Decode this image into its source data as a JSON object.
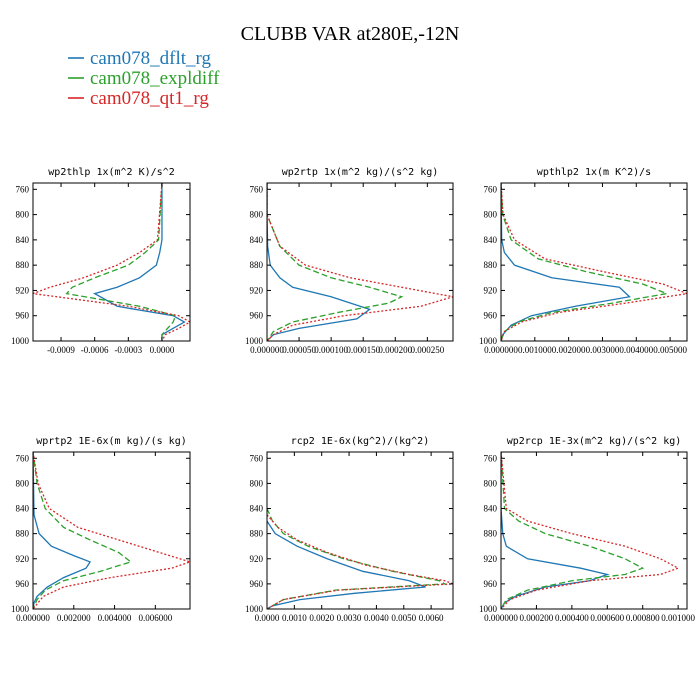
{
  "title": "CLUBB VAR at280E,-12N",
  "legend": [
    {
      "label": "cam078_dflt_rg",
      "color": "#1f77b4",
      "dash": "solid"
    },
    {
      "label": "cam078_expldiff",
      "color": "#2ca02c",
      "dash": "dashed"
    },
    {
      "label": "cam078_qt1_rg",
      "color": "#d62728",
      "dash": "dotted"
    }
  ],
  "chart_data": [
    {
      "type": "line",
      "title": "wp2thlp  1x(m^2 K)/s^2",
      "xlim": [
        -0.00115,
        0.00025
      ],
      "ylim": [
        1000,
        750
      ],
      "xticks": [
        "-0.0009",
        "-0.0006",
        "-0.0003",
        "0.0000"
      ],
      "xtick_values": [
        -0.0009,
        -0.0006,
        -0.0003,
        0.0
      ],
      "yticks": [
        760,
        800,
        840,
        880,
        920,
        960,
        1000
      ],
      "series": [
        {
          "name": "cam078_dflt_rg",
          "y": [
            750,
            840,
            860,
            880,
            900,
            915,
            925,
            945,
            960,
            970,
            980,
            990,
            1000
          ],
          "values": [
            0.0,
            0.0,
            -2e-05,
            -5e-05,
            -0.0002,
            -0.0004,
            -0.0006,
            -0.0004,
            0.0001,
            0.0002,
            0.0001,
            0.0,
            0.0
          ]
        },
        {
          "name": "cam078_expldiff",
          "y": [
            750,
            840,
            860,
            880,
            900,
            915,
            925,
            945,
            960,
            970,
            980,
            990,
            1000
          ],
          "values": [
            0.0,
            -3e-05,
            -0.00015,
            -0.0003,
            -0.0006,
            -0.0008,
            -0.00085,
            -0.0002,
            0.00012,
            0.0001,
            5e-05,
            0.0,
            0.0
          ]
        },
        {
          "name": "cam078_qt1_rg",
          "y": [
            750,
            840,
            860,
            880,
            900,
            915,
            925,
            945,
            960,
            970,
            980,
            990,
            1000
          ],
          "values": [
            0.0,
            -4e-05,
            -0.0002,
            -0.0004,
            -0.0007,
            -0.001,
            -0.00115,
            -0.0003,
            0.00015,
            0.00025,
            0.00015,
            3e-05,
            0.0
          ]
        }
      ]
    },
    {
      "type": "line",
      "title": "wp2rtp  1x(m^2 kg)/(s^2 kg)",
      "xlim": [
        0.0,
        0.00029
      ],
      "ylim": [
        1000,
        750
      ],
      "xticks": [
        "0.000000",
        "0.000050",
        "0.000100",
        "0.000150",
        "0.000200",
        "0.000250"
      ],
      "xtick_values": [
        0.0,
        5e-05,
        0.0001,
        0.00015,
        0.0002,
        0.00025
      ],
      "yticks": [
        760,
        800,
        840,
        880,
        920,
        960,
        1000
      ],
      "series": [
        {
          "name": "cam078_dflt_rg",
          "y": [
            750,
            800,
            850,
            880,
            900,
            915,
            930,
            950,
            965,
            980,
            990,
            1000
          ],
          "values": [
            0.0,
            0.0,
            1e-06,
            5e-06,
            2e-05,
            4e-05,
            0.0001,
            0.00016,
            0.00014,
            5e-05,
            1e-05,
            0.0
          ]
        },
        {
          "name": "cam078_expldiff",
          "y": [
            750,
            800,
            850,
            880,
            900,
            915,
            930,
            940,
            955,
            970,
            985,
            1000
          ],
          "values": [
            0.0,
            0.0,
            2e-05,
            5e-05,
            0.0001,
            0.00016,
            0.00021,
            0.00019,
            0.00011,
            4e-05,
            1e-05,
            0.0
          ]
        },
        {
          "name": "cam078_qt1_rg",
          "y": [
            750,
            800,
            850,
            880,
            900,
            915,
            930,
            945,
            960,
            975,
            990,
            1000
          ],
          "values": [
            0.0,
            0.0,
            2e-05,
            6e-05,
            0.00013,
            0.00021,
            0.00029,
            0.00024,
            0.00012,
            4e-05,
            1e-05,
            0.0
          ]
        }
      ]
    },
    {
      "type": "line",
      "title": "wpthlp2  1x(m K^2)/s",
      "xlim": [
        0.0,
        0.0055
      ],
      "ylim": [
        1000,
        750
      ],
      "xticks": [
        "0.000000",
        "0.001000",
        "0.002000",
        "0.003000",
        "0.004000",
        "0.005000"
      ],
      "xtick_values": [
        0.0,
        0.001,
        0.002,
        0.003,
        0.004,
        0.005
      ],
      "yticks": [
        760,
        800,
        840,
        880,
        920,
        960,
        1000
      ],
      "series": [
        {
          "name": "cam078_dflt_rg",
          "y": [
            750,
            840,
            860,
            880,
            900,
            915,
            930,
            945,
            960,
            975,
            990,
            1000
          ],
          "values": [
            0.0,
            2e-05,
            0.0001,
            0.0004,
            0.0015,
            0.0035,
            0.0038,
            0.0022,
            0.0009,
            0.0003,
            5e-05,
            0.0
          ]
        },
        {
          "name": "cam078_expldiff",
          "y": [
            750,
            800,
            840,
            870,
            890,
            910,
            925,
            940,
            955,
            970,
            985,
            1000
          ],
          "values": [
            0.0,
            5e-05,
            0.0003,
            0.0011,
            0.0025,
            0.0042,
            0.0049,
            0.0033,
            0.0015,
            0.0005,
            0.0001,
            0.0
          ]
        },
        {
          "name": "cam078_qt1_rg",
          "y": [
            750,
            800,
            840,
            870,
            890,
            910,
            925,
            940,
            955,
            970,
            985,
            1000
          ],
          "values": [
            0.0,
            6e-05,
            0.0004,
            0.0013,
            0.003,
            0.0048,
            0.0055,
            0.0037,
            0.0017,
            0.0006,
            0.0001,
            0.0
          ]
        }
      ]
    },
    {
      "type": "line",
      "title": "wprtp2  1E-6x(m kg)/(s kg)",
      "xlim": [
        0.0,
        0.0077
      ],
      "ylim": [
        1000,
        750
      ],
      "xticks": [
        "0.000000",
        "0.002000",
        "0.004000",
        "0.006000"
      ],
      "xtick_values": [
        0.0,
        0.002,
        0.004,
        0.006
      ],
      "yticks": [
        760,
        800,
        840,
        880,
        920,
        960,
        1000
      ],
      "series": [
        {
          "name": "cam078_dflt_rg",
          "y": [
            750,
            850,
            880,
            900,
            915,
            925,
            935,
            950,
            965,
            980,
            990,
            1000
          ],
          "values": [
            0.0,
            5e-05,
            0.0003,
            0.0009,
            0.002,
            0.0028,
            0.0026,
            0.0015,
            0.0007,
            0.0002,
            5e-05,
            0.0
          ]
        },
        {
          "name": "cam078_expldiff",
          "y": [
            750,
            800,
            840,
            870,
            890,
            910,
            925,
            940,
            955,
            970,
            985,
            1000
          ],
          "values": [
            0.0,
            0.0002,
            0.0006,
            0.0015,
            0.0028,
            0.0042,
            0.0048,
            0.0033,
            0.0015,
            0.0006,
            0.0002,
            0.0
          ]
        },
        {
          "name": "cam078_qt1_rg",
          "y": [
            750,
            800,
            840,
            870,
            890,
            910,
            925,
            935,
            950,
            965,
            980,
            1000
          ],
          "values": [
            0.0,
            0.00025,
            0.0008,
            0.0022,
            0.0042,
            0.0062,
            0.0077,
            0.0068,
            0.0038,
            0.0015,
            0.0005,
            0.0
          ]
        }
      ]
    },
    {
      "type": "line",
      "title": "rcp2  1E-6x(kg^2)/(kg^2)",
      "xlim": [
        0.0,
        0.0068
      ],
      "ylim": [
        1000,
        750
      ],
      "xticks": [
        "0.0000",
        "0.0010",
        "0.0020",
        "0.0030",
        "0.0040",
        "0.0050",
        "0.0060"
      ],
      "xtick_values": [
        0.0,
        0.001,
        0.002,
        0.003,
        0.004,
        0.005,
        0.006
      ],
      "yticks": [
        760,
        800,
        840,
        880,
        920,
        960,
        1000
      ],
      "series": [
        {
          "name": "cam078_dflt_rg",
          "y": [
            860,
            880,
            900,
            920,
            940,
            955,
            965,
            975,
            985,
            995,
            1000
          ],
          "values": [
            0.0,
            0.0003,
            0.0011,
            0.0022,
            0.0035,
            0.0052,
            0.0058,
            0.0032,
            0.0012,
            0.0002,
            0.0
          ]
        },
        {
          "name": "cam078_expldiff",
          "y": [
            840,
            860,
            880,
            900,
            920,
            940,
            955,
            960,
            970,
            985,
            1000
          ],
          "values": [
            0.0,
            0.0002,
            0.0006,
            0.0015,
            0.0028,
            0.0046,
            0.0063,
            0.0065,
            0.0025,
            0.0006,
            0.0
          ]
        },
        {
          "name": "cam078_qt1_rg",
          "y": [
            850,
            870,
            890,
            910,
            930,
            945,
            955,
            960,
            970,
            985,
            1000
          ],
          "values": [
            0.0,
            0.0004,
            0.0011,
            0.0022,
            0.0036,
            0.0052,
            0.0065,
            0.0068,
            0.0026,
            0.0006,
            0.0
          ]
        }
      ]
    },
    {
      "type": "line",
      "title": "wp2rcp  1E-3x(m^2 kg)/(s^2 kg)",
      "xlim": [
        0.0,
        0.00105
      ],
      "ylim": [
        1000,
        750
      ],
      "xticks": [
        "0.000000",
        "0.000200",
        "0.000400",
        "0.000600",
        "0.000800",
        "0.001000"
      ],
      "xtick_values": [
        0.0,
        0.0002,
        0.0004,
        0.0006,
        0.0008,
        0.001
      ],
      "yticks": [
        760,
        800,
        840,
        880,
        920,
        960,
        1000
      ],
      "series": [
        {
          "name": "cam078_dflt_rg",
          "y": [
            750,
            840,
            880,
            900,
            920,
            935,
            945,
            955,
            965,
            980,
            990,
            1000
          ],
          "values": [
            0.0,
            0.0,
            1e-05,
            3e-05,
            0.00015,
            0.00045,
            0.0006,
            0.0005,
            0.00025,
            8e-05,
            2e-05,
            0.0
          ]
        },
        {
          "name": "cam078_expldiff",
          "y": [
            750,
            840,
            860,
            880,
            900,
            920,
            935,
            945,
            955,
            970,
            985,
            1000
          ],
          "values": [
            0.0,
            2e-05,
            0.0001,
            0.00025,
            0.0005,
            0.0007,
            0.0008,
            0.0007,
            0.0004,
            0.00015,
            3e-05,
            0.0
          ]
        },
        {
          "name": "cam078_qt1_rg",
          "y": [
            750,
            840,
            860,
            880,
            900,
            920,
            935,
            945,
            955,
            970,
            985,
            1000
          ],
          "values": [
            0.0,
            3e-05,
            0.00015,
            0.0004,
            0.0007,
            0.0009,
            0.001,
            0.0009,
            0.0005,
            0.0002,
            5e-05,
            0.0
          ]
        }
      ]
    }
  ]
}
